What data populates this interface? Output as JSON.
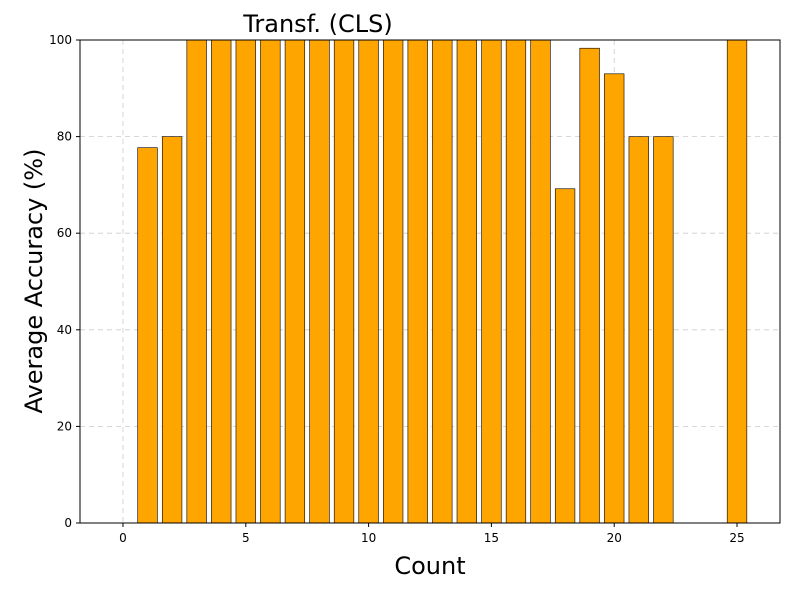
{
  "chart_data": {
    "type": "bar",
    "title": "Transf. (CLS)",
    "xlabel": "Count",
    "ylabel": "Average Accuracy (%)",
    "x": [
      1,
      2,
      3,
      4,
      5,
      6,
      7,
      8,
      9,
      10,
      11,
      12,
      13,
      14,
      15,
      16,
      17,
      18,
      19,
      20,
      21,
      22,
      25
    ],
    "values": [
      77.7,
      80,
      100,
      100,
      100,
      100,
      100,
      100,
      100,
      100,
      100,
      100,
      100,
      100,
      100,
      100,
      100,
      69.2,
      98.3,
      93,
      80,
      80,
      100
    ],
    "xlim": [
      -1.75,
      26.75
    ],
    "ylim": [
      0,
      100
    ],
    "xticks": [
      0,
      5,
      10,
      15,
      20,
      25
    ],
    "yticks": [
      0,
      20,
      40,
      60,
      80,
      100
    ],
    "bar_color": "#FFA500",
    "edge_color": "#000000",
    "grid": true
  }
}
